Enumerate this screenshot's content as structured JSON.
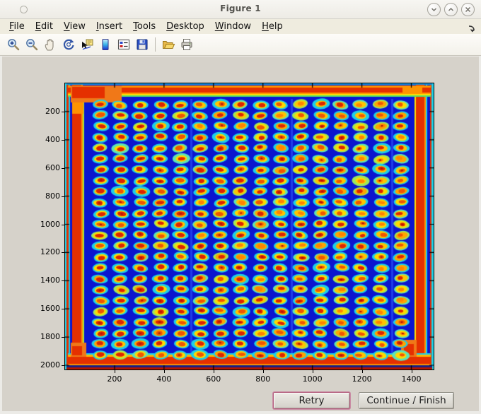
{
  "window": {
    "title": "Figure 1"
  },
  "titlebar": {
    "controls": [
      "minimize",
      "maximize",
      "close"
    ]
  },
  "menubar": {
    "items": [
      "File",
      "Edit",
      "View",
      "Insert",
      "Tools",
      "Desktop",
      "Window",
      "Help"
    ],
    "dock_icon": "dock-figure-arrow"
  },
  "toolbar": {
    "icons": [
      "zoom-in",
      "zoom-out",
      "pan",
      "rotate-3d",
      "data-cursor",
      "insert-colorbar",
      "insert-legend",
      "save-figure",
      "separator",
      "open-file",
      "print-figure"
    ]
  },
  "plot": {
    "type": "image-heatmap",
    "colormap": "jet",
    "description": "Scanned microplate / microarray image: blue field with grid of red-orange wells and red plate edges",
    "x_ticks": [
      200,
      400,
      600,
      800,
      1000,
      1200,
      1400
    ],
    "y_ticks": [
      200,
      400,
      600,
      800,
      1000,
      1200,
      1400,
      1600,
      1800,
      2000
    ],
    "x_range": [
      0,
      1490
    ],
    "y_range": [
      0,
      2030
    ]
  },
  "plate_image": {
    "background": "#0b15cf",
    "grid": {
      "cols": 16,
      "rows": 24
    },
    "colors": {
      "red": "#e53000",
      "orange": "#ff9300",
      "yellow": "#ffdf00",
      "cyan": "#1ed0e6",
      "green": "#62e46e",
      "dark_red": "#b01400",
      "halo": [
        "#1ecfe6",
        "#5ee4b4",
        "#9ae860"
      ],
      "ring": [
        "#ffd900",
        "#ffc400",
        "#ffa400"
      ],
      "core": [
        "#dd2400",
        "#f05600",
        "#ff8400"
      ]
    }
  },
  "buttons": {
    "retry": "Retry",
    "continue": "Continue / Finish"
  }
}
